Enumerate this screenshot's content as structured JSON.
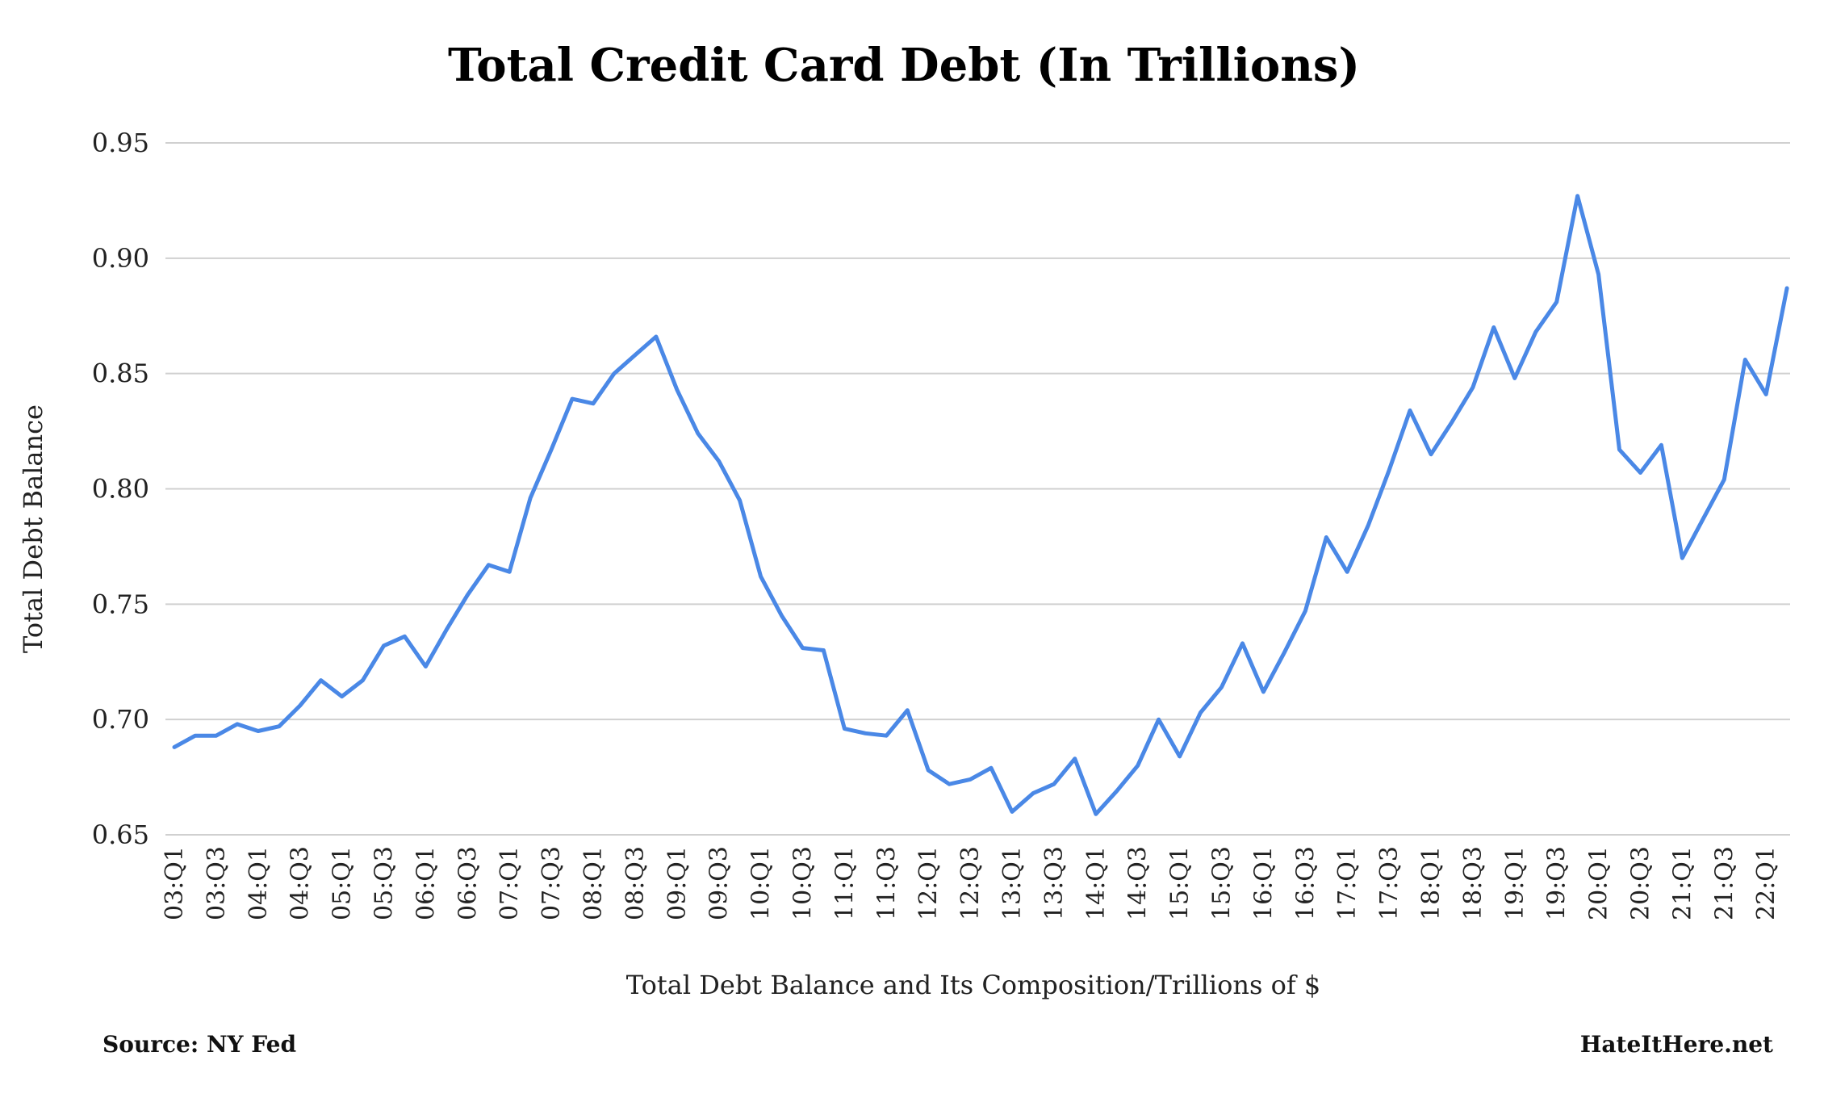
{
  "chart_data": {
    "type": "line",
    "title": "Total Credit Card Debt (In Trillions)",
    "xlabel": "Total Debt Balance and Its Composition/Trillions of $",
    "ylabel": "Total Debt Balance",
    "ylim": [
      0.65,
      0.95
    ],
    "yticks": [
      "0.95",
      "0.90",
      "0.85",
      "0.80",
      "0.75",
      "0.70",
      "0.65"
    ],
    "grid": true,
    "x_tick_labels": [
      "03:Q1",
      "03:Q3",
      "04:Q1",
      "04:Q3",
      "05:Q1",
      "05:Q3",
      "06:Q1",
      "06:Q3",
      "07:Q1",
      "07:Q3",
      "08:Q1",
      "08:Q3",
      "09:Q1",
      "09:Q3",
      "10:Q1",
      "10:Q3",
      "11:Q1",
      "11:Q3",
      "12:Q1",
      "12:Q3",
      "13:Q1",
      "13:Q3",
      "14:Q1",
      "14:Q3",
      "15:Q1",
      "15:Q3",
      "16:Q1",
      "16:Q3",
      "17:Q1",
      "17:Q3",
      "18:Q1",
      "18:Q3",
      "19:Q1",
      "19:Q3",
      "20:Q1",
      "20:Q3",
      "21:Q1",
      "21:Q3",
      "22:Q1"
    ],
    "x": [
      "03:Q1",
      "03:Q2",
      "03:Q3",
      "03:Q4",
      "04:Q1",
      "04:Q2",
      "04:Q3",
      "04:Q4",
      "05:Q1",
      "05:Q2",
      "05:Q3",
      "05:Q4",
      "06:Q1",
      "06:Q2",
      "06:Q3",
      "06:Q4",
      "07:Q1",
      "07:Q2",
      "07:Q3",
      "07:Q4",
      "08:Q1",
      "08:Q2",
      "08:Q3",
      "08:Q4",
      "09:Q1",
      "09:Q2",
      "09:Q3",
      "09:Q4",
      "10:Q1",
      "10:Q2",
      "10:Q3",
      "10:Q4",
      "11:Q1",
      "11:Q2",
      "11:Q3",
      "11:Q4",
      "12:Q1",
      "12:Q2",
      "12:Q3",
      "12:Q4",
      "13:Q1",
      "13:Q2",
      "13:Q3",
      "13:Q4",
      "14:Q1",
      "14:Q2",
      "14:Q3",
      "14:Q4",
      "15:Q1",
      "15:Q2",
      "15:Q3",
      "15:Q4",
      "16:Q1",
      "16:Q2",
      "16:Q3",
      "16:Q4",
      "17:Q1",
      "17:Q2",
      "17:Q3",
      "17:Q4",
      "18:Q1",
      "18:Q2",
      "18:Q3",
      "18:Q4",
      "19:Q1",
      "19:Q2",
      "19:Q3",
      "19:Q4",
      "20:Q1",
      "20:Q2",
      "20:Q3",
      "20:Q4",
      "21:Q1",
      "21:Q2",
      "21:Q3",
      "21:Q4",
      "22:Q1",
      "22:Q2"
    ],
    "series": [
      {
        "values": [
          0.688,
          0.693,
          0.693,
          0.698,
          0.695,
          0.697,
          0.706,
          0.717,
          0.71,
          0.717,
          0.732,
          0.736,
          0.723,
          0.739,
          0.754,
          0.767,
          0.764,
          0.796,
          0.817,
          0.839,
          0.837,
          0.85,
          0.858,
          0.866,
          0.843,
          0.824,
          0.812,
          0.795,
          0.762,
          0.745,
          0.731,
          0.73,
          0.696,
          0.694,
          0.693,
          0.704,
          0.678,
          0.672,
          0.674,
          0.679,
          0.66,
          0.668,
          0.672,
          0.683,
          0.659,
          0.669,
          0.68,
          0.7,
          0.684,
          0.703,
          0.714,
          0.733,
          0.712,
          0.729,
          0.747,
          0.779,
          0.764,
          0.784,
          0.808,
          0.834,
          0.815,
          0.829,
          0.844,
          0.87,
          0.848,
          0.868,
          0.881,
          0.927,
          0.893,
          0.817,
          0.807,
          0.819,
          0.77,
          0.787,
          0.804,
          0.856,
          0.841,
          0.887
        ],
        "color": "#4a88e6"
      }
    ]
  },
  "footer": {
    "source": "Source: NY Fed",
    "site": "HateItHere.net"
  }
}
